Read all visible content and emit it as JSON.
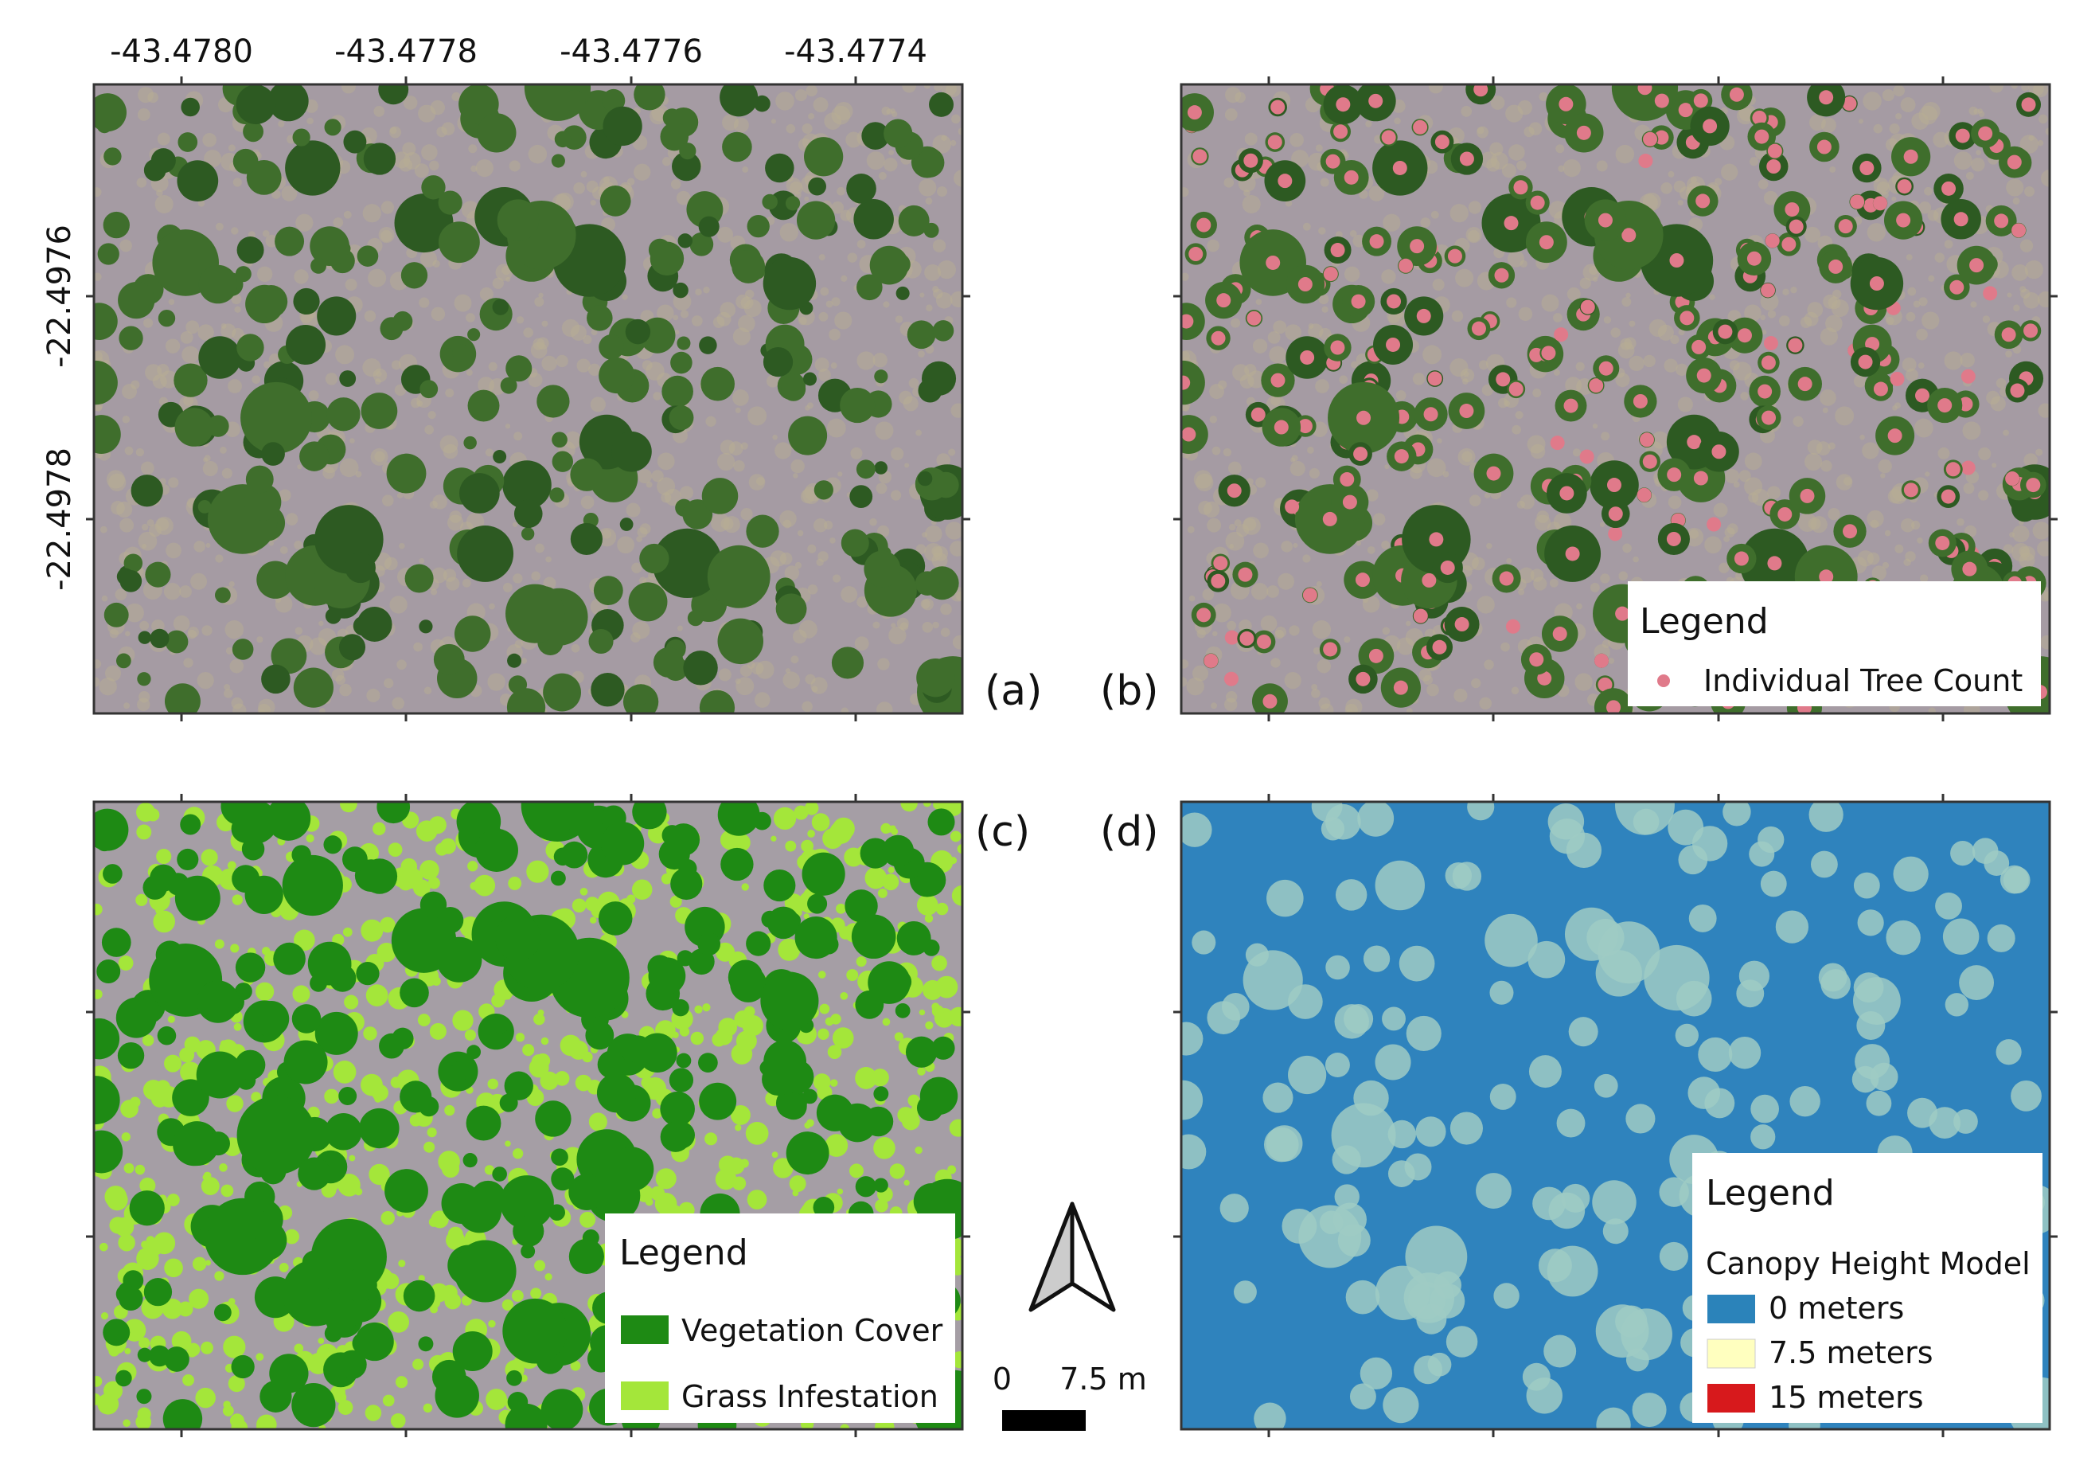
{
  "axes": {
    "x_tick_labels": [
      "-43.4780",
      "-43.4778",
      "-43.4776",
      "-43.4774"
    ],
    "y_tick_labels": [
      "-22.4976",
      "-22.4978"
    ]
  },
  "panels": [
    {
      "label": "(a)"
    },
    {
      "label": "(b)",
      "legend": {
        "title": "Legend",
        "items": [
          "Individual Tree Count"
        ]
      }
    },
    {
      "label": "(c)",
      "legend": {
        "title": "Legend",
        "items": [
          "Vegetation Cover",
          "Grass Infestation"
        ]
      }
    },
    {
      "label": "(d)",
      "legend": {
        "title": "Legend",
        "subtitle": "Canopy Height Model",
        "items": [
          "0 meters",
          "7.5 meters",
          "15 meters"
        ]
      }
    }
  ],
  "scale_bar": {
    "start": "0",
    "end": "7.5 m"
  }
}
